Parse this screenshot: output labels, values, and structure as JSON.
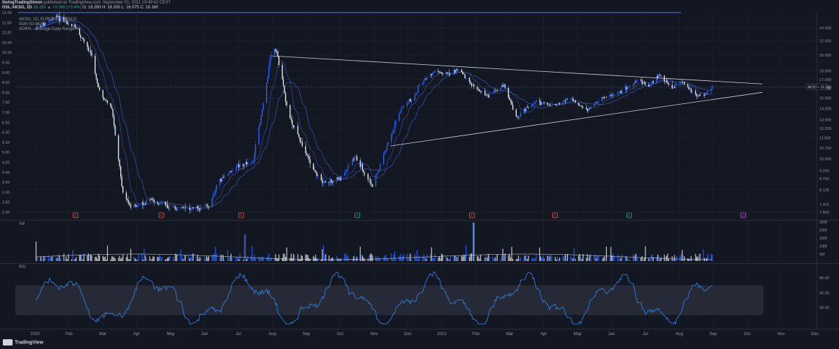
{
  "header": {
    "publisher": "SwingTradingSimon",
    "published_text": "published on TradingView.com, September 01, 2021 19:49:42 CEST",
    "symbol": "OSL:AKSO, 1D",
    "change": "16.160 ▲ +0.060 (+0.4%)",
    "o": "O: 16.350",
    "h": "H: 16.350",
    "l": "L: 16.075",
    "c": "C: 16.160"
  },
  "indicator_labels": {
    "symbol_line": "AKSO, 1D, EURONEXT OSLO",
    "ma": "SMA 50 AKSO",
    "adr": "ADR% - Average Daily Range %",
    "volume": "Vol",
    "rsi": "RSI"
  },
  "price_tag": "AKSO • 16.160",
  "footer": {
    "brand": "TradingView"
  },
  "colors": {
    "bg": "#131722",
    "up": "#2962ff",
    "down": "#e8e8ee",
    "ma": "#3b5bb8",
    "rsi": "#2f7fe0",
    "trend": "#d1d4dc",
    "grid": "#1f2433"
  },
  "chart_data": {
    "type": "candlestick",
    "x_axis": {
      "ticks": [
        "2020",
        "Feb",
        "Mar",
        "Apr",
        "May",
        "Jun",
        "Jul",
        "Aug",
        "Sep",
        "Oct",
        "Nov",
        "Dec",
        "2021",
        "Feb",
        "Mar",
        "Apr",
        "May",
        "Jun",
        "Jul",
        "Aug",
        "Sep",
        "Oct",
        "Nov",
        "Dec",
        "202"
      ]
    },
    "left_axis": {
      "ticks": [
        "12.00",
        "11.50",
        "11.00",
        "10.50",
        "10.00",
        "9.50",
        "9.00",
        "8.50",
        "8.00",
        "7.50",
        "7.00",
        "6.50",
        "6.00",
        "5.50",
        "5.00",
        "4.50",
        "4.00",
        "3.50",
        "3.00",
        "2.50",
        "2.00"
      ]
    },
    "right_axis": {
      "scale": "log",
      "ticks": [
        "24.000",
        "22.000",
        "20.000",
        "18.000",
        "17.000",
        "16.000",
        "15.000",
        "14.000",
        "13.000",
        "12.250",
        "11.500",
        "10.750",
        "10.000",
        "9.250",
        "8.750",
        "8.125",
        "7.375",
        "7.000"
      ]
    },
    "last_price": 16.16,
    "trendlines": [
      {
        "name": "upper",
        "from": [
          "2020-08-01",
          19.9
        ],
        "to": [
          "2021-10-15",
          16.5
        ]
      },
      {
        "name": "lower",
        "from": [
          "2020-11-15",
          10.9
        ],
        "to": [
          "2021-10-15",
          15.6
        ]
      }
    ],
    "event_markers": [
      "E",
      "E",
      "E",
      "D",
      "E",
      "E",
      "D",
      "D",
      "E"
    ],
    "volume": {
      "ticks": [
        "25M",
        "20M",
        "15M",
        "10M",
        "5M"
      ]
    },
    "rsi": {
      "ticks": [
        "80.00",
        "60.00",
        "40.00"
      ],
      "band": [
        30,
        70
      ]
    }
  }
}
